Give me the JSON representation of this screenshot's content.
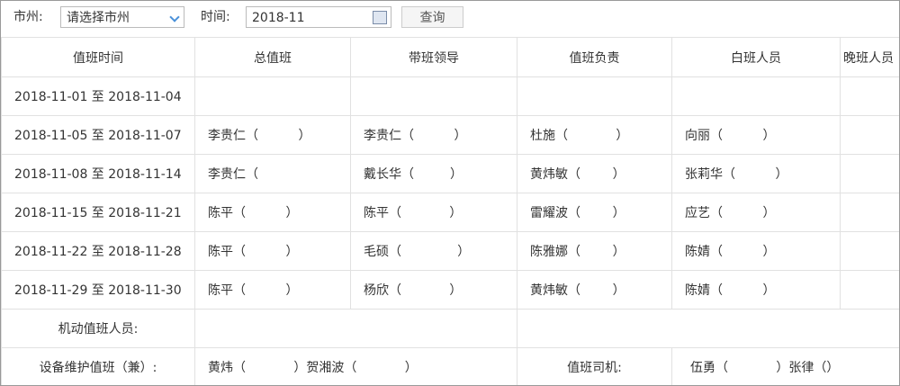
{
  "filter": {
    "city_label": "市州:",
    "city_select": "请选择市州",
    "time_label": "时间:",
    "time_value": "2018-11",
    "query_button": "查询"
  },
  "table": {
    "headers": [
      "值班时间",
      "总值班",
      "带班领导",
      "值班负责",
      "白班人员",
      "晚班人员"
    ],
    "rows": [
      [
        "2018-11-01 至 2018-11-04"
      ],
      [
        "2018-11-05 至 2018-11-07",
        "李贵仁（          ）",
        "李贵仁（          ）",
        "杜施（            ）",
        "向丽（          ）"
      ],
      [
        "2018-11-08 至 2018-11-14",
        "李贵仁（         ",
        "戴长华（         ）",
        "黄炜敏（        ）",
        "张莉华（          ）"
      ],
      [
        "2018-11-15 至 2018-11-21",
        "陈平（          ）",
        "陈平（            ）",
        "雷耀波（        ）",
        "应艺（          ）"
      ],
      [
        "2018-11-22 至 2018-11-28",
        "陈平（          ）",
        "毛硕（              ）",
        "陈雅娜（        ）",
        "陈婧（          ）"
      ],
      [
        "2018-11-29 至 2018-11-30",
        "陈平（          ）",
        "杨欣（            ）",
        "黄炜敏（        ）",
        "陈婧（          ）"
      ]
    ],
    "footer": [
      [
        "机动值班人员:"
      ],
      [
        "设备维护值班（兼）:",
        "黄炜（            ）贺湘波（            ）",
        "值班司机:",
        "伍勇（            ）张律（）"
      ]
    ]
  }
}
